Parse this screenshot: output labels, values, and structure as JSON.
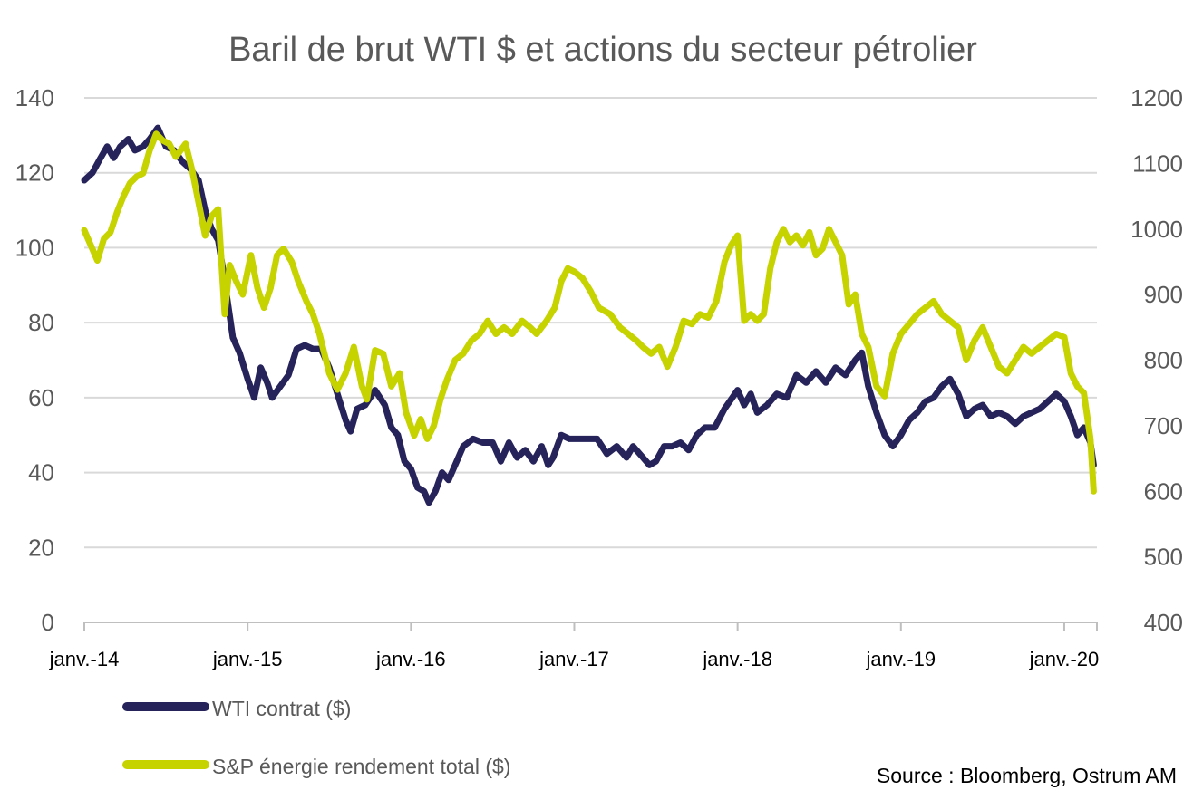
{
  "chart_data": {
    "type": "line",
    "title": "Baril de brut WTI $ et actions du secteur pétrolier",
    "source": "Source : Bloomberg, Ostrum AM",
    "x_tick_labels": [
      "janv.-14",
      "janv.-15",
      "janv.-16",
      "janv.-17",
      "janv.-18",
      "janv.-19",
      "janv.-20"
    ],
    "x_range": [
      2014.0,
      2020.2
    ],
    "y_left": {
      "ticks": [
        "0",
        "20",
        "40",
        "60",
        "80",
        "100",
        "120",
        "140"
      ],
      "range": [
        0,
        140
      ]
    },
    "y_right": {
      "ticks": [
        "400",
        "500",
        "600",
        "700",
        "800",
        "900",
        "1000",
        "1100",
        "1200"
      ],
      "range": [
        400,
        1200
      ]
    },
    "grid": "horizontal",
    "legend_position": "bottom-left",
    "series": [
      {
        "name": "WTI contrat ($)",
        "color": "#25235a",
        "axis": "left",
        "points": [
          [
            2014.0,
            118
          ],
          [
            2014.05,
            120
          ],
          [
            2014.1,
            124
          ],
          [
            2014.14,
            127
          ],
          [
            2014.18,
            124
          ],
          [
            2014.22,
            127
          ],
          [
            2014.27,
            129
          ],
          [
            2014.31,
            126
          ],
          [
            2014.36,
            127
          ],
          [
            2014.4,
            129
          ],
          [
            2014.45,
            132
          ],
          [
            2014.5,
            127
          ],
          [
            2014.55,
            126
          ],
          [
            2014.6,
            123
          ],
          [
            2014.65,
            121
          ],
          [
            2014.7,
            118
          ],
          [
            2014.74,
            110
          ],
          [
            2014.78,
            105
          ],
          [
            2014.82,
            102
          ],
          [
            2014.85,
            94
          ],
          [
            2014.88,
            85
          ],
          [
            2014.91,
            76
          ],
          [
            2014.95,
            72
          ],
          [
            2015.0,
            65
          ],
          [
            2015.04,
            60
          ],
          [
            2015.08,
            68
          ],
          [
            2015.12,
            64
          ],
          [
            2015.15,
            60
          ],
          [
            2015.2,
            63
          ],
          [
            2015.25,
            66
          ],
          [
            2015.3,
            73
          ],
          [
            2015.35,
            74
          ],
          [
            2015.4,
            73
          ],
          [
            2015.45,
            73
          ],
          [
            2015.5,
            68
          ],
          [
            2015.55,
            61
          ],
          [
            2015.6,
            54
          ],
          [
            2015.63,
            51
          ],
          [
            2015.67,
            57
          ],
          [
            2015.72,
            58
          ],
          [
            2015.78,
            62
          ],
          [
            2015.84,
            58
          ],
          [
            2015.88,
            52
          ],
          [
            2015.92,
            50
          ],
          [
            2015.96,
            43
          ],
          [
            2016.0,
            41
          ],
          [
            2016.04,
            36
          ],
          [
            2016.08,
            35
          ],
          [
            2016.11,
            32
          ],
          [
            2016.15,
            35
          ],
          [
            2016.19,
            40
          ],
          [
            2016.23,
            38
          ],
          [
            2016.28,
            43
          ],
          [
            2016.32,
            47
          ],
          [
            2016.38,
            49
          ],
          [
            2016.44,
            48
          ],
          [
            2016.5,
            48
          ],
          [
            2016.55,
            43
          ],
          [
            2016.6,
            48
          ],
          [
            2016.65,
            44
          ],
          [
            2016.7,
            46
          ],
          [
            2016.75,
            43
          ],
          [
            2016.8,
            47
          ],
          [
            2016.84,
            42
          ],
          [
            2016.87,
            44
          ],
          [
            2016.92,
            50
          ],
          [
            2016.97,
            49
          ],
          [
            2017.02,
            49
          ],
          [
            2017.08,
            49
          ],
          [
            2017.14,
            49
          ],
          [
            2017.2,
            45
          ],
          [
            2017.26,
            47
          ],
          [
            2017.32,
            44
          ],
          [
            2017.36,
            47
          ],
          [
            2017.42,
            44
          ],
          [
            2017.46,
            42
          ],
          [
            2017.5,
            43
          ],
          [
            2017.55,
            47
          ],
          [
            2017.6,
            47
          ],
          [
            2017.65,
            48
          ],
          [
            2017.7,
            46
          ],
          [
            2017.75,
            50
          ],
          [
            2017.8,
            52
          ],
          [
            2017.86,
            52
          ],
          [
            2017.92,
            57
          ],
          [
            2018.0,
            62
          ],
          [
            2018.04,
            58
          ],
          [
            2018.08,
            61
          ],
          [
            2018.12,
            56
          ],
          [
            2018.18,
            58
          ],
          [
            2018.24,
            61
          ],
          [
            2018.3,
            60
          ],
          [
            2018.36,
            66
          ],
          [
            2018.42,
            64
          ],
          [
            2018.48,
            67
          ],
          [
            2018.54,
            64
          ],
          [
            2018.6,
            68
          ],
          [
            2018.66,
            66
          ],
          [
            2018.72,
            70
          ],
          [
            2018.76,
            72
          ],
          [
            2018.8,
            63
          ],
          [
            2018.85,
            56
          ],
          [
            2018.9,
            50
          ],
          [
            2018.95,
            47
          ],
          [
            2019.0,
            50
          ],
          [
            2019.05,
            54
          ],
          [
            2019.1,
            56
          ],
          [
            2019.15,
            59
          ],
          [
            2019.2,
            60
          ],
          [
            2019.25,
            63
          ],
          [
            2019.3,
            65
          ],
          [
            2019.35,
            61
          ],
          [
            2019.4,
            55
          ],
          [
            2019.45,
            57
          ],
          [
            2019.5,
            58
          ],
          [
            2019.55,
            55
          ],
          [
            2019.6,
            56
          ],
          [
            2019.65,
            55
          ],
          [
            2019.7,
            53
          ],
          [
            2019.75,
            55
          ],
          [
            2019.8,
            56
          ],
          [
            2019.85,
            57
          ],
          [
            2019.9,
            59
          ],
          [
            2019.95,
            61
          ],
          [
            2020.0,
            59
          ],
          [
            2020.04,
            55
          ],
          [
            2020.08,
            50
          ],
          [
            2020.12,
            52
          ],
          [
            2020.16,
            48
          ],
          [
            2020.18,
            42
          ]
        ]
      },
      {
        "name": "S&P énergie rendement total ($)",
        "color": "#c6d300",
        "axis": "right",
        "points": [
          [
            2014.0,
            998
          ],
          [
            2014.04,
            975
          ],
          [
            2014.08,
            952
          ],
          [
            2014.12,
            985
          ],
          [
            2014.16,
            995
          ],
          [
            2014.2,
            1025
          ],
          [
            2014.24,
            1050
          ],
          [
            2014.28,
            1070
          ],
          [
            2014.32,
            1080
          ],
          [
            2014.36,
            1085
          ],
          [
            2014.4,
            1120
          ],
          [
            2014.44,
            1145
          ],
          [
            2014.48,
            1135
          ],
          [
            2014.52,
            1130
          ],
          [
            2014.56,
            1110
          ],
          [
            2014.62,
            1130
          ],
          [
            2014.66,
            1090
          ],
          [
            2014.7,
            1040
          ],
          [
            2014.74,
            990
          ],
          [
            2014.78,
            1020
          ],
          [
            2014.82,
            1030
          ],
          [
            2014.86,
            870
          ],
          [
            2014.89,
            945
          ],
          [
            2014.93,
            920
          ],
          [
            2014.97,
            900
          ],
          [
            2015.02,
            960
          ],
          [
            2015.06,
            910
          ],
          [
            2015.1,
            880
          ],
          [
            2015.14,
            910
          ],
          [
            2015.18,
            960
          ],
          [
            2015.22,
            970
          ],
          [
            2015.27,
            950
          ],
          [
            2015.31,
            920
          ],
          [
            2015.36,
            890
          ],
          [
            2015.4,
            870
          ],
          [
            2015.44,
            840
          ],
          [
            2015.5,
            780
          ],
          [
            2015.55,
            755
          ],
          [
            2015.6,
            780
          ],
          [
            2015.65,
            820
          ],
          [
            2015.7,
            760
          ],
          [
            2015.73,
            740
          ],
          [
            2015.78,
            815
          ],
          [
            2015.83,
            810
          ],
          [
            2015.88,
            760
          ],
          [
            2015.93,
            780
          ],
          [
            2015.97,
            720
          ],
          [
            2016.02,
            685
          ],
          [
            2016.06,
            710
          ],
          [
            2016.1,
            680
          ],
          [
            2016.14,
            700
          ],
          [
            2016.18,
            740
          ],
          [
            2016.22,
            770
          ],
          [
            2016.27,
            800
          ],
          [
            2016.32,
            810
          ],
          [
            2016.37,
            830
          ],
          [
            2016.42,
            840
          ],
          [
            2016.47,
            860
          ],
          [
            2016.52,
            840
          ],
          [
            2016.57,
            850
          ],
          [
            2016.62,
            840
          ],
          [
            2016.68,
            860
          ],
          [
            2016.73,
            850
          ],
          [
            2016.77,
            840
          ],
          [
            2016.83,
            860
          ],
          [
            2016.88,
            880
          ],
          [
            2016.92,
            920
          ],
          [
            2016.96,
            940
          ],
          [
            2017.0,
            935
          ],
          [
            2017.05,
            925
          ],
          [
            2017.1,
            905
          ],
          [
            2017.15,
            880
          ],
          [
            2017.22,
            870
          ],
          [
            2017.28,
            850
          ],
          [
            2017.33,
            840
          ],
          [
            2017.38,
            830
          ],
          [
            2017.42,
            820
          ],
          [
            2017.47,
            810
          ],
          [
            2017.52,
            820
          ],
          [
            2017.57,
            790
          ],
          [
            2017.62,
            820
          ],
          [
            2017.67,
            860
          ],
          [
            2017.72,
            855
          ],
          [
            2017.77,
            870
          ],
          [
            2017.82,
            865
          ],
          [
            2017.87,
            890
          ],
          [
            2017.92,
            950
          ],
          [
            2017.96,
            975
          ],
          [
            2018.0,
            990
          ],
          [
            2018.04,
            860
          ],
          [
            2018.08,
            870
          ],
          [
            2018.12,
            860
          ],
          [
            2018.16,
            870
          ],
          [
            2018.2,
            940
          ],
          [
            2018.24,
            980
          ],
          [
            2018.28,
            1000
          ],
          [
            2018.32,
            980
          ],
          [
            2018.36,
            990
          ],
          [
            2018.4,
            975
          ],
          [
            2018.44,
            995
          ],
          [
            2018.48,
            960
          ],
          [
            2018.52,
            970
          ],
          [
            2018.56,
            1000
          ],
          [
            2018.6,
            980
          ],
          [
            2018.64,
            960
          ],
          [
            2018.68,
            885
          ],
          [
            2018.72,
            900
          ],
          [
            2018.76,
            840
          ],
          [
            2018.8,
            820
          ],
          [
            2018.85,
            760
          ],
          [
            2018.9,
            745
          ],
          [
            2018.95,
            810
          ],
          [
            2019.0,
            840
          ],
          [
            2019.05,
            855
          ],
          [
            2019.1,
            870
          ],
          [
            2019.15,
            880
          ],
          [
            2019.2,
            890
          ],
          [
            2019.25,
            870
          ],
          [
            2019.3,
            860
          ],
          [
            2019.35,
            850
          ],
          [
            2019.4,
            800
          ],
          [
            2019.45,
            830
          ],
          [
            2019.5,
            850
          ],
          [
            2019.55,
            820
          ],
          [
            2019.6,
            790
          ],
          [
            2019.65,
            780
          ],
          [
            2019.7,
            800
          ],
          [
            2019.75,
            820
          ],
          [
            2019.8,
            810
          ],
          [
            2019.85,
            820
          ],
          [
            2019.9,
            830
          ],
          [
            2019.95,
            840
          ],
          [
            2020.0,
            835
          ],
          [
            2020.04,
            780
          ],
          [
            2020.08,
            760
          ],
          [
            2020.12,
            750
          ],
          [
            2020.16,
            680
          ],
          [
            2020.18,
            600
          ]
        ]
      }
    ]
  }
}
